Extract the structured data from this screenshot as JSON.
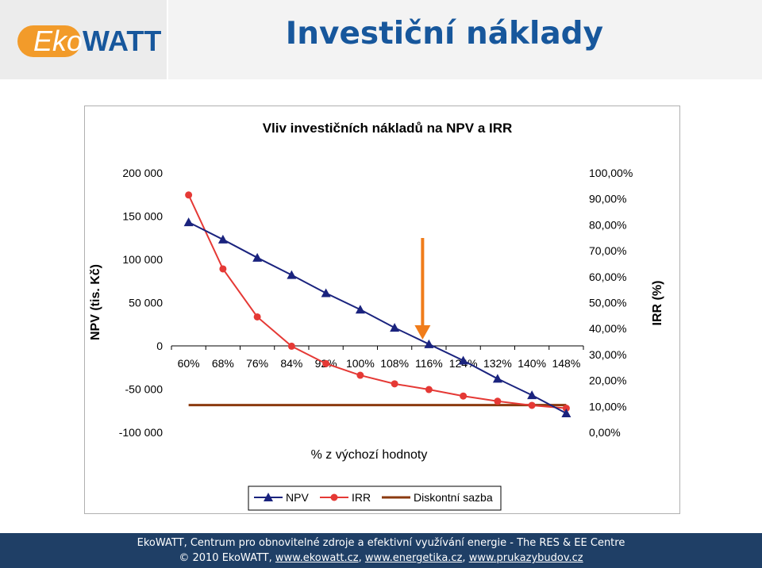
{
  "logo": {
    "eko": "Eko",
    "watt": "WATT"
  },
  "slide_title": "Investiční náklady",
  "colors": {
    "npv": "#1a237e",
    "irr": "#e53935",
    "discount": "#8b3a0f",
    "arrow": "#f07c1a",
    "title": "#17579c",
    "footer": "#1f3f66"
  },
  "chart_data": {
    "type": "line",
    "title": "Vliv investičních nákladů na NPV a IRR",
    "xlabel": "% z výchozí hodnoty",
    "ylabel": "NPV (tis. Kč)",
    "ylabel_right": "IRR (%)",
    "categories": [
      "60%",
      "68%",
      "76%",
      "84%",
      "92%",
      "100%",
      "108%",
      "116%",
      "124%",
      "132%",
      "140%",
      "148%"
    ],
    "ylim": [
      -100000,
      200000
    ],
    "yticks": [
      "200 000",
      "150 000",
      "100 000",
      "50 000",
      "0",
      "-50 000",
      "-100 000"
    ],
    "ylim_right": [
      0,
      100
    ],
    "yticks_right": [
      "100,00%",
      "90,00%",
      "80,00%",
      "70,00%",
      "60,00%",
      "50,00%",
      "40,00%",
      "30,00%",
      "20,00%",
      "10,00%",
      "0,00%"
    ],
    "series": [
      {
        "name": "NPV",
        "axis": "left",
        "marker": "triangle",
        "values": [
          143000,
          123000,
          102000,
          82000,
          61000,
          42000,
          21000,
          2000,
          -17000,
          -38000,
          -57000,
          -78000
        ]
      },
      {
        "name": "IRR",
        "axis": "right",
        "marker": "circle",
        "values": [
          91.5,
          63.0,
          44.5,
          33.2,
          26.5,
          22.0,
          18.7,
          16.5,
          14.0,
          12.0,
          10.4,
          9.3
        ]
      },
      {
        "name": "Diskontní sazba",
        "axis": "right",
        "marker": "none",
        "values": [
          10.5,
          10.5,
          10.5,
          10.5,
          10.5,
          10.5,
          10.5,
          10.5,
          10.5,
          10.5,
          10.5,
          10.5
        ]
      }
    ],
    "annotation": {
      "type": "arrow",
      "category": "116%"
    },
    "grid": false,
    "legend": "bottom"
  },
  "footer": {
    "line1": "EkoWATT, Centrum pro obnovitelné zdroje a efektivní využívání energie - The RES & EE Centre",
    "line2_prefix": "© 2010 EkoWATT, ",
    "link1": "www.ekowatt.cz",
    "sep1": ", ",
    "link2": "www.energetika.cz",
    "sep2": ", ",
    "link3": "www.prukazybudov.cz"
  }
}
